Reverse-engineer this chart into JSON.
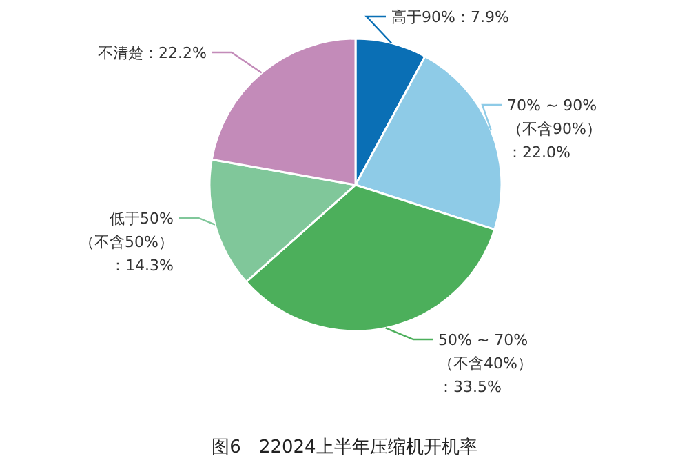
{
  "chart_data": {
    "type": "pie",
    "title": "图6　22024上半年压缩机开机率",
    "categories": [
      "高于90%",
      "70% ~ 90%（不含90%）",
      "50% ~ 70%（不含40%）",
      "低于50%（不含50%）",
      "不清楚"
    ],
    "values": [
      7.9,
      22.0,
      33.5,
      14.3,
      22.2
    ],
    "value_labels": [
      "7.9%",
      "：22.0%",
      "：33.5%",
      "：14.3%",
      "22.2%"
    ],
    "colors": [
      "#0a6fb5",
      "#8ecbe7",
      "#4caf5b",
      "#80c79a",
      "#c38bb9"
    ]
  }
}
